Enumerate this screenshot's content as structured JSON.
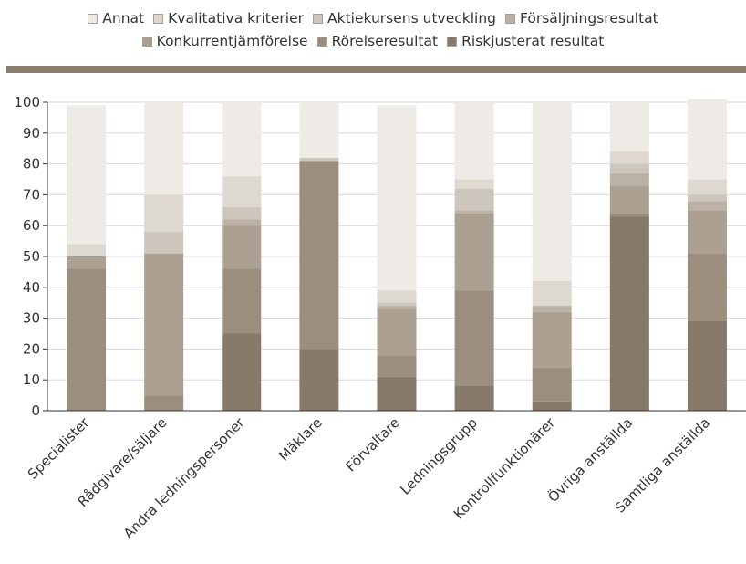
{
  "chart_data": {
    "type": "bar",
    "stacked": true,
    "categories": [
      "Specialister",
      "Rådgivare/säljare",
      "Andra ledningspersoner",
      "Mäklare",
      "Förvaltare",
      "Ledningsgrupp",
      "Kontrollfunktionärer",
      "Övriga anställda",
      "Samtliga anställda"
    ],
    "ylim": [
      0,
      100
    ],
    "yticks": [
      0,
      10,
      20,
      30,
      40,
      50,
      60,
      70,
      80,
      90,
      100
    ],
    "grid": true,
    "legend_position": "top",
    "series": [
      {
        "name": "Riskjusterat resultat",
        "color": "#877a6a",
        "values": [
          0,
          0,
          25,
          20,
          11,
          8,
          3,
          63,
          29
        ]
      },
      {
        "name": "Rörelseresultat",
        "color": "#9b8e7e",
        "values": [
          46,
          5,
          21,
          61,
          7,
          31,
          11,
          1,
          22
        ]
      },
      {
        "name": "Konkurrentjämförelse",
        "color": "#aba091",
        "values": [
          4,
          46,
          14,
          0,
          15,
          25,
          18,
          9,
          14
        ]
      },
      {
        "name": "Försäljningsresultat",
        "color": "#bbb2a5",
        "values": [
          0,
          0,
          2,
          0,
          1,
          1,
          2,
          4,
          3
        ]
      },
      {
        "name": "Aktiekursens utveckling",
        "color": "#cdc6bc",
        "values": [
          0,
          7,
          4,
          1,
          1,
          7,
          0,
          3,
          2
        ]
      },
      {
        "name": "Kvalitativa kriterier",
        "color": "#ddd8d0",
        "values": [
          4,
          12,
          10,
          0,
          4,
          3,
          8,
          4,
          5
        ]
      },
      {
        "name": "Annat",
        "color": "#eeebe7",
        "values": [
          45,
          30,
          24,
          18,
          60,
          25,
          58,
          16,
          26
        ]
      }
    ]
  },
  "legend": {
    "row1": [
      {
        "label": "Annat",
        "color": "#eeebe7"
      },
      {
        "label": "Kvalitativa kriterier",
        "color": "#ddd8d0"
      },
      {
        "label": "Aktiekursens utveckling",
        "color": "#cdc6bc"
      },
      {
        "label": "Försäljningsresultat",
        "color": "#bbb2a5"
      }
    ],
    "row2": [
      {
        "label": "Konkurrentjämförelse",
        "color": "#aba091"
      },
      {
        "label": "Rörelseresultat",
        "color": "#9b8e7e"
      },
      {
        "label": "Riskjusterat resultat",
        "color": "#877a6a"
      }
    ]
  }
}
